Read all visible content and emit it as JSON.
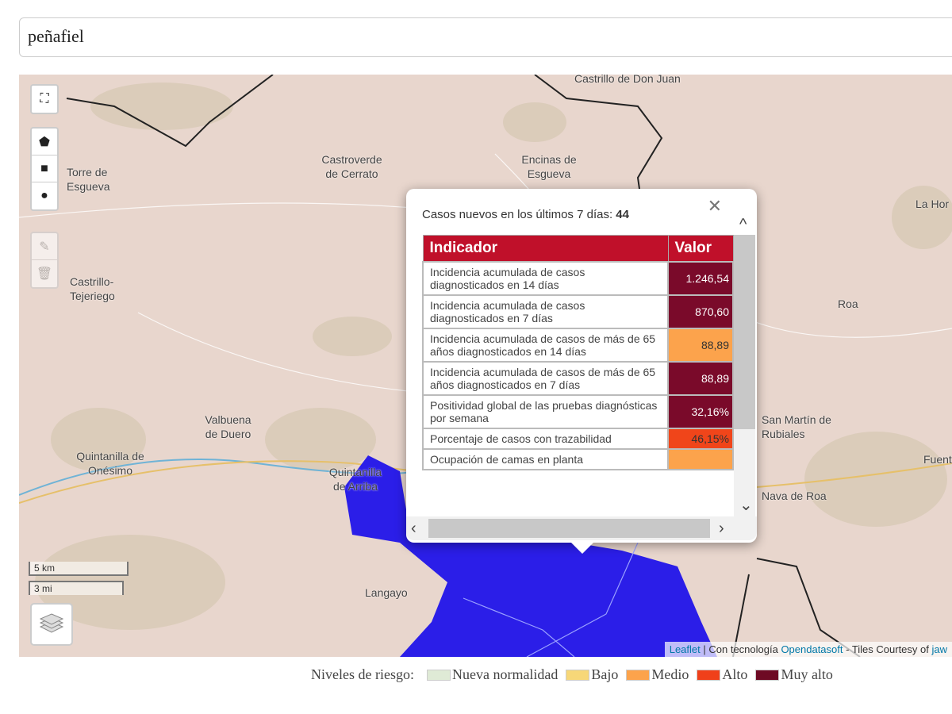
{
  "search": {
    "value": "peñafiel"
  },
  "map": {
    "places": [
      "Castrillo de Don Juan",
      "Castroverde de Cerrato",
      "Encinas de Esgueva",
      "Torre de Esgueva",
      "Castrillo-Tejeriego",
      "Valbuena de Duero",
      "Quintanilla de Onésimo",
      "Quintanilla de Arriba",
      "Langayo",
      "Roa",
      "La Hor",
      "Fuent",
      "Nava de Roa",
      "San Martín de Rubiales"
    ],
    "scale": {
      "metric": "5 km",
      "imperial": "3 mi"
    },
    "controls": [
      "fullscreen",
      "draw-polygon",
      "draw-rectangle",
      "draw-circle",
      "edit",
      "delete",
      "layers"
    ],
    "attribution": {
      "leaflet": "Leaflet",
      "sep": " | Con tecnología ",
      "ods": "Opendatasoft",
      "tiles": " - Tiles Courtesy of ",
      "jaw": "jaw"
    },
    "region_color": "#2b1ee8"
  },
  "popup": {
    "title": "Casos nuevos en los últimos 7 días: ",
    "count": "44",
    "headers": {
      "indicator": "Indicador",
      "value": "Valor"
    },
    "rows": [
      {
        "label": "Incidencia acumulada de casos diagnosticados en 14 días",
        "value": "1.246,54",
        "color": "#7a0a2a",
        "text": "#fff"
      },
      {
        "label": "Incidencia acumulada de casos diagnosticados en 7 días",
        "value": "870,60",
        "color": "#7a0a2a",
        "text": "#fff"
      },
      {
        "label": "Incidencia acumulada de casos de más de 65 años diagnosticados en 14 días",
        "value": "88,89",
        "color": "#fca34c",
        "text": "#333"
      },
      {
        "label": "Incidencia acumulada de casos de más de 65 años diagnosticados en 7 días",
        "value": "88,89",
        "color": "#7a0a2a",
        "text": "#fff"
      },
      {
        "label": "Positividad global de las pruebas diagnósticas por semana",
        "value": "32,16%",
        "color": "#7a0a2a",
        "text": "#fff"
      },
      {
        "label": "Porcentaje de casos con trazabilidad",
        "value": "46,15%",
        "color": "#f0451a",
        "text": "#333"
      },
      {
        "label": "Ocupación de camas en planta",
        "value": "",
        "color": "#fca34c",
        "text": "#333"
      }
    ]
  },
  "legend": {
    "title": "Niveles de riesgo:",
    "items": [
      {
        "label": "Nueva normalidad",
        "color": "#dfead6"
      },
      {
        "label": "Bajo",
        "color": "#f7d778"
      },
      {
        "label": "Medio",
        "color": "#fca34c"
      },
      {
        "label": "Alto",
        "color": "#f0401a"
      },
      {
        "label": "Muy alto",
        "color": "#6e0a24"
      }
    ]
  }
}
